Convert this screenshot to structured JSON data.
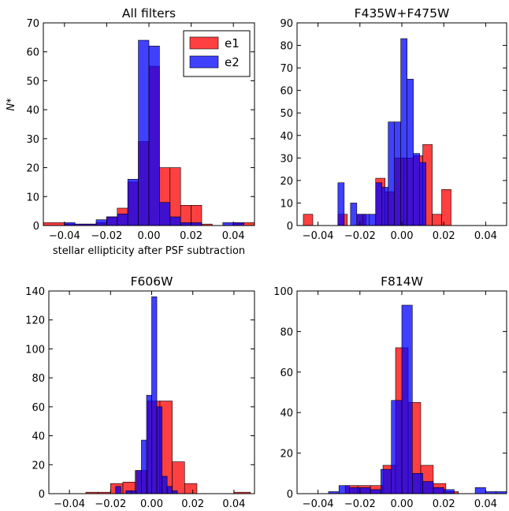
{
  "colors": {
    "e1": "#ff0000",
    "e2": "#0000ff"
  },
  "chart_data": [
    {
      "type": "bar",
      "title": "All filters",
      "xlabel": "stellar ellipticity after PSF subtraction",
      "ylabel": "N*",
      "xlim": [
        -0.05,
        0.05
      ],
      "ylim": [
        0,
        70
      ],
      "xticks": [
        -0.04,
        -0.02,
        0.0,
        0.02,
        0.04
      ],
      "xtick_labels": [
        "−0.04",
        "−0.02",
        "0.00",
        "0.02",
        "0.04"
      ],
      "yticks": [
        0,
        10,
        20,
        30,
        40,
        50,
        60,
        70
      ],
      "legend": {
        "placement": "top-right",
        "entries": [
          "e1",
          "e2"
        ]
      },
      "series": [
        {
          "name": "e1",
          "bins": [
            [
              -0.05,
              -0.04,
              1
            ],
            [
              -0.04,
              -0.035,
              0.5
            ],
            [
              -0.035,
              -0.025,
              0.5
            ],
            [
              -0.025,
              -0.02,
              1
            ],
            [
              -0.02,
              -0.015,
              3
            ],
            [
              -0.015,
              -0.01,
              6
            ],
            [
              -0.01,
              -0.005,
              15
            ],
            [
              -0.005,
              0,
              29
            ],
            [
              0,
              0.005,
              55
            ],
            [
              0.005,
              0.01,
              20
            ],
            [
              0.01,
              0.015,
              20
            ],
            [
              0.015,
              0.02,
              7
            ],
            [
              0.02,
              0.025,
              7
            ],
            [
              0.025,
              0.03,
              0.5
            ],
            [
              0.04,
              0.05,
              1
            ]
          ]
        },
        {
          "name": "e2",
          "bins": [
            [
              -0.04,
              -0.035,
              1
            ],
            [
              -0.035,
              -0.025,
              0.5
            ],
            [
              -0.025,
              -0.02,
              2
            ],
            [
              -0.02,
              -0.015,
              3
            ],
            [
              -0.015,
              -0.01,
              4
            ],
            [
              -0.01,
              -0.005,
              16
            ],
            [
              -0.005,
              0,
              64
            ],
            [
              0,
              0.005,
              62
            ],
            [
              0.005,
              0.01,
              8
            ],
            [
              0.01,
              0.015,
              3
            ],
            [
              0.015,
              0.025,
              1
            ],
            [
              0.035,
              0.04,
              1
            ],
            [
              0.04,
              0.045,
              1
            ]
          ]
        }
      ]
    },
    {
      "type": "bar",
      "title": "F435W+F475W",
      "xlabel": "",
      "ylabel": "",
      "xlim": [
        -0.05,
        0.05
      ],
      "ylim": [
        0,
        90
      ],
      "xticks": [
        -0.04,
        -0.02,
        0.0,
        0.02,
        0.04
      ],
      "xtick_labels": [
        "−0.04",
        "−0.02",
        "0.00",
        "0.02",
        "0.04"
      ],
      "yticks": [
        0,
        10,
        20,
        30,
        40,
        50,
        60,
        70,
        80,
        90
      ],
      "series": [
        {
          "name": "e1",
          "bins": [
            [
              -0.047,
              -0.0425,
              5
            ],
            [
              -0.0305,
              -0.026,
              5
            ],
            [
              -0.0215,
              -0.017,
              5
            ],
            [
              -0.0125,
              -0.008,
              21
            ],
            [
              -0.008,
              -0.0035,
              15
            ],
            [
              -0.0035,
              0.001,
              30
            ],
            [
              0.001,
              0.0055,
              30
            ],
            [
              0.0055,
              0.01,
              31
            ],
            [
              0.01,
              0.0145,
              36
            ],
            [
              0.0145,
              0.019,
              5
            ],
            [
              0.019,
              0.0235,
              16
            ]
          ]
        },
        {
          "name": "e2",
          "bins": [
            [
              -0.0305,
              -0.0275,
              19
            ],
            [
              -0.0245,
              -0.0215,
              10
            ],
            [
              -0.0215,
              -0.0185,
              5
            ],
            [
              -0.0185,
              -0.0155,
              5
            ],
            [
              -0.0155,
              -0.0125,
              5
            ],
            [
              -0.0125,
              -0.0095,
              19
            ],
            [
              -0.0095,
              -0.0065,
              17
            ],
            [
              -0.0065,
              -0.0035,
              46
            ],
            [
              -0.0035,
              -0.0005,
              46
            ],
            [
              -0.0005,
              0.0025,
              83
            ],
            [
              0.0025,
              0.0055,
              65
            ],
            [
              0.0055,
              0.0085,
              32
            ],
            [
              0.0085,
              0.0115,
              28
            ]
          ]
        }
      ]
    },
    {
      "type": "bar",
      "title": "F606W",
      "xlabel": "",
      "ylabel": "",
      "xlim": [
        -0.05,
        0.05
      ],
      "ylim": [
        0,
        140
      ],
      "xticks": [
        -0.04,
        -0.02,
        0.0,
        0.02,
        0.04
      ],
      "xtick_labels": [
        "−0.04",
        "−0.02",
        "0.00",
        "0.02",
        "0.04"
      ],
      "yticks": [
        0,
        20,
        40,
        60,
        80,
        100,
        120,
        140
      ],
      "series": [
        {
          "name": "e1",
          "bins": [
            [
              -0.032,
              -0.026,
              1
            ],
            [
              -0.026,
              -0.02,
              1
            ],
            [
              -0.02,
              -0.014,
              7
            ],
            [
              -0.014,
              -0.008,
              8
            ],
            [
              -0.008,
              -0.002,
              16
            ],
            [
              -0.002,
              0.004,
              64
            ],
            [
              0.004,
              0.01,
              64
            ],
            [
              0.01,
              0.016,
              22
            ],
            [
              0.016,
              0.022,
              7
            ],
            [
              0.04,
              0.048,
              1
            ]
          ]
        },
        {
          "name": "e2",
          "bins": [
            [
              -0.0175,
              -0.015,
              5
            ],
            [
              -0.0125,
              -0.01,
              2
            ],
            [
              -0.01,
              -0.0075,
              2
            ],
            [
              -0.0075,
              -0.005,
              16
            ],
            [
              -0.005,
              -0.0025,
              37
            ],
            [
              -0.0025,
              0,
              68
            ],
            [
              0,
              0.0025,
              136
            ],
            [
              0.0025,
              0.005,
              60
            ],
            [
              0.005,
              0.0075,
              12
            ],
            [
              0.0075,
              0.01,
              5
            ],
            [
              0.01,
              0.0125,
              2
            ]
          ]
        }
      ]
    },
    {
      "type": "bar",
      "title": "F814W",
      "xlabel": "",
      "ylabel": "",
      "xlim": [
        -0.05,
        0.05
      ],
      "ylim": [
        0,
        100
      ],
      "xticks": [
        -0.04,
        -0.02,
        0.0,
        0.02,
        0.04
      ],
      "xtick_labels": [
        "−0.04",
        "−0.02",
        "0.00",
        "0.02",
        "0.04"
      ],
      "yticks": [
        0,
        20,
        40,
        60,
        80,
        100
      ],
      "series": [
        {
          "name": "e1",
          "bins": [
            [
              -0.027,
              -0.021,
              4
            ],
            [
              -0.021,
              -0.015,
              4
            ],
            [
              -0.015,
              -0.009,
              4
            ],
            [
              -0.009,
              -0.003,
              14
            ],
            [
              -0.003,
              0.003,
              72
            ],
            [
              0.003,
              0.009,
              45
            ],
            [
              0.009,
              0.015,
              14
            ],
            [
              0.015,
              0.021,
              5
            ],
            [
              0.021,
              0.027,
              1
            ]
          ]
        },
        {
          "name": "e2",
          "bins": [
            [
              -0.035,
              -0.03,
              1
            ],
            [
              -0.03,
              -0.025,
              4
            ],
            [
              -0.025,
              -0.02,
              3
            ],
            [
              -0.02,
              -0.015,
              3
            ],
            [
              -0.015,
              -0.01,
              2
            ],
            [
              -0.01,
              -0.005,
              12
            ],
            [
              -0.005,
              0,
              46
            ],
            [
              0,
              0.005,
              93
            ],
            [
              0.005,
              0.01,
              10
            ],
            [
              0.01,
              0.015,
              6
            ],
            [
              0.015,
              0.02,
              3
            ],
            [
              0.02,
              0.025,
              2
            ],
            [
              0.035,
              0.04,
              3
            ],
            [
              0.04,
              0.045,
              1
            ],
            [
              0.045,
              0.05,
              1
            ]
          ]
        }
      ]
    }
  ]
}
